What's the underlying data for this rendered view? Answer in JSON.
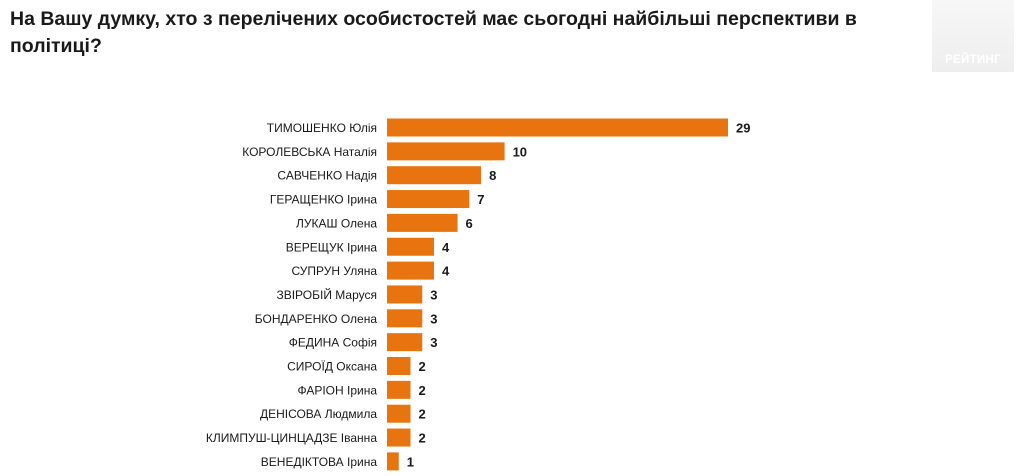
{
  "title": "На Вашу думку, хто з перелічених особистостей має сьогодні найбільші перспективи в політиці?",
  "logo_text": "РЕЙТИНГ",
  "colors": {
    "bar": "#e8740f",
    "label": "#1a1a1a",
    "value": "#1a1a1a"
  },
  "chart_data": {
    "type": "bar",
    "orientation": "horizontal",
    "title": "На Вашу думку, хто з перелічених особистостей має сьогодні найбільші перспективи в політиці?",
    "categories": [
      "ТИМОШЕНКО Юлія",
      "КОРОЛЕВСЬКА Наталія",
      "САВЧЕНКО Надія",
      "ГЕРАЩЕНКО Ірина",
      "ЛУКАШ Олена",
      "ВЕРЕЩУК Ірина",
      "СУПРУН Уляна",
      "ЗВІРОБІЙ Маруся",
      "БОНДАРЕНКО Олена",
      "ФЕДИНА Софія",
      "СИРОЇД Оксана",
      "ФАРІОН Ірина",
      "ДЕНІСОВА Людмила",
      "КЛИМПУШ-ЦИНЦАДЗЕ Іванна",
      "ВЕНЕДІКТОВА Ірина"
    ],
    "values": [
      29,
      10,
      8,
      7,
      6,
      4,
      4,
      3,
      3,
      3,
      2,
      2,
      2,
      2,
      1
    ],
    "xlabel": "",
    "ylabel": "",
    "grid": false,
    "legend": "none"
  }
}
